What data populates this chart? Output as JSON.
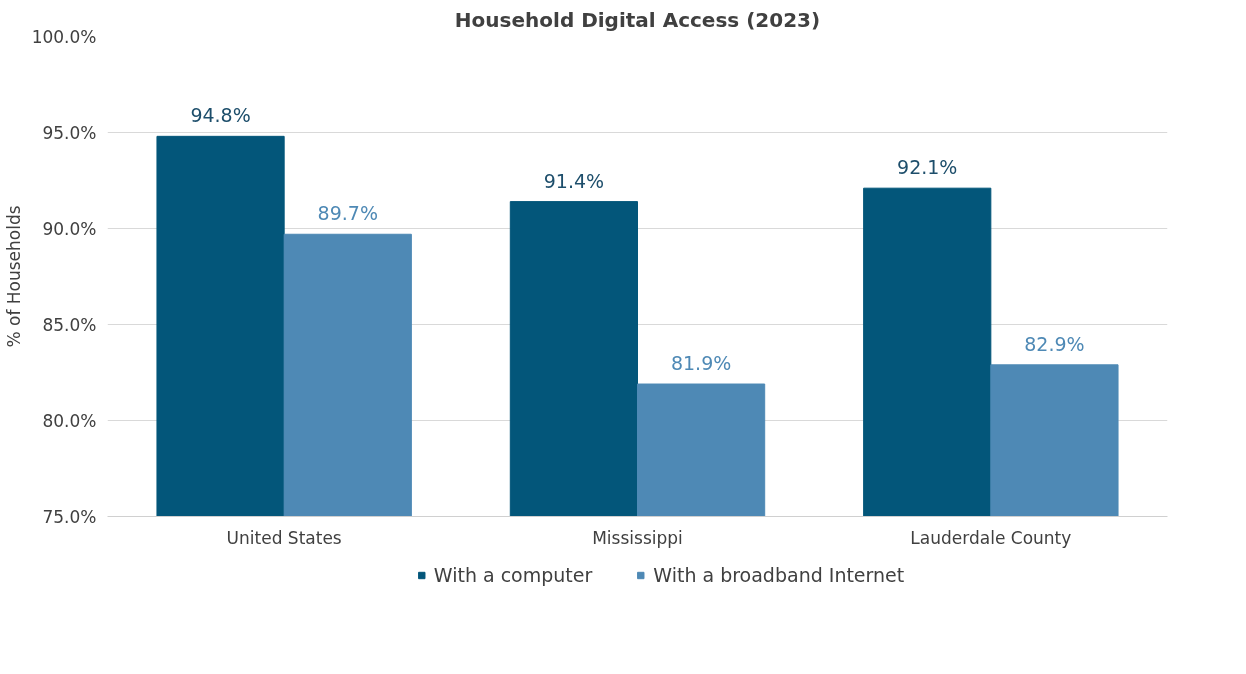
{
  "chart_data": {
    "type": "bar",
    "title": "Household Digital Access (2023)",
    "ylabel": "% of Households",
    "categories": [
      "United States",
      "Mississippi",
      "Lauderdale County"
    ],
    "series": [
      {
        "name": "With a computer",
        "color": "#03567a",
        "values": [
          94.8,
          91.4,
          92.1
        ],
        "value_labels": [
          "94.8%",
          "91.4%",
          "92.1%"
        ]
      },
      {
        "name": "With a broadband Internet",
        "color": "#4e89b5",
        "values": [
          89.7,
          81.9,
          82.9
        ],
        "value_labels": [
          "89.7%",
          "81.9%",
          "82.9%"
        ]
      }
    ],
    "ylim": [
      75,
      100
    ],
    "yticks": [
      {
        "value": 75,
        "label": "75.0%"
      },
      {
        "value": 80,
        "label": "80.0%"
      },
      {
        "value": 85,
        "label": "85.0%"
      },
      {
        "value": 90,
        "label": "90.0%"
      },
      {
        "value": 95,
        "label": "95.0%"
      },
      {
        "value": 100,
        "label": "100.0%"
      }
    ],
    "grid": "y",
    "legend": "bottom"
  }
}
